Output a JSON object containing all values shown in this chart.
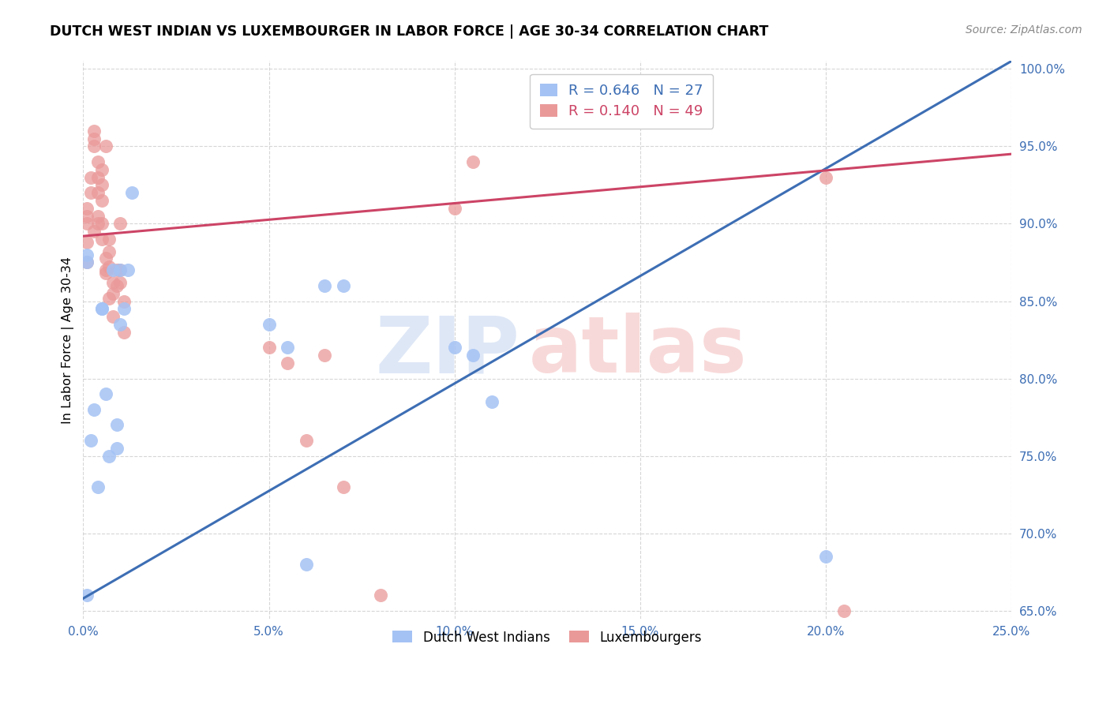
{
  "title": "DUTCH WEST INDIAN VS LUXEMBOURGER IN LABOR FORCE | AGE 30-34 CORRELATION CHART",
  "source": "Source: ZipAtlas.com",
  "xlabel_ticks": [
    "0.0%",
    "5.0%",
    "10.0%",
    "15.0%",
    "20.0%",
    "25.0%"
  ],
  "xlim": [
    0.0,
    0.25
  ],
  "ylim": [
    0.645,
    1.005
  ],
  "blue_color": "#a4c2f4",
  "pink_color": "#ea9999",
  "blue_line_color": "#3d6eb4",
  "pink_line_color": "#cc4466",
  "legend_blue_r": "0.646",
  "legend_blue_n": "27",
  "legend_pink_r": "0.140",
  "legend_pink_n": "49",
  "legend_label_blue": "Dutch West Indians",
  "legend_label_pink": "Luxembourgers",
  "blue_scatter_x": [
    0.001,
    0.002,
    0.003,
    0.004,
    0.005,
    0.005,
    0.006,
    0.007,
    0.008,
    0.009,
    0.009,
    0.01,
    0.01,
    0.011,
    0.012,
    0.013,
    0.001,
    0.05,
    0.055,
    0.06,
    0.065,
    0.07,
    0.1,
    0.105,
    0.11,
    0.2,
    0.001
  ],
  "blue_scatter_y": [
    0.88,
    0.76,
    0.78,
    0.73,
    0.845,
    0.845,
    0.79,
    0.75,
    0.87,
    0.77,
    0.755,
    0.87,
    0.835,
    0.845,
    0.87,
    0.92,
    0.875,
    0.835,
    0.82,
    0.68,
    0.86,
    0.86,
    0.82,
    0.815,
    0.785,
    0.685,
    0.66
  ],
  "pink_scatter_x": [
    0.001,
    0.001,
    0.001,
    0.001,
    0.001,
    0.002,
    0.002,
    0.003,
    0.003,
    0.003,
    0.004,
    0.004,
    0.004,
    0.004,
    0.005,
    0.005,
    0.005,
    0.005,
    0.006,
    0.006,
    0.006,
    0.007,
    0.007,
    0.007,
    0.008,
    0.008,
    0.009,
    0.009,
    0.01,
    0.01,
    0.01,
    0.011,
    0.011,
    0.05,
    0.055,
    0.06,
    0.065,
    0.07,
    0.08,
    0.1,
    0.105,
    0.2,
    0.205,
    0.003,
    0.004,
    0.005,
    0.006,
    0.007,
    0.008
  ],
  "pink_scatter_y": [
    0.91,
    0.905,
    0.9,
    0.888,
    0.875,
    0.93,
    0.92,
    0.96,
    0.955,
    0.95,
    0.94,
    0.93,
    0.92,
    0.905,
    0.935,
    0.925,
    0.915,
    0.9,
    0.95,
    0.878,
    0.868,
    0.882,
    0.872,
    0.852,
    0.862,
    0.84,
    0.87,
    0.86,
    0.9,
    0.87,
    0.862,
    0.85,
    0.83,
    0.82,
    0.81,
    0.76,
    0.815,
    0.73,
    0.66,
    0.91,
    0.94,
    0.93,
    0.65,
    0.895,
    0.9,
    0.89,
    0.87,
    0.89,
    0.855
  ],
  "blue_trendline_x": [
    0.0,
    0.25
  ],
  "blue_trendline_y": [
    0.658,
    1.005
  ],
  "pink_trendline_x": [
    0.0,
    0.25
  ],
  "pink_trendline_y": [
    0.892,
    0.945
  ]
}
